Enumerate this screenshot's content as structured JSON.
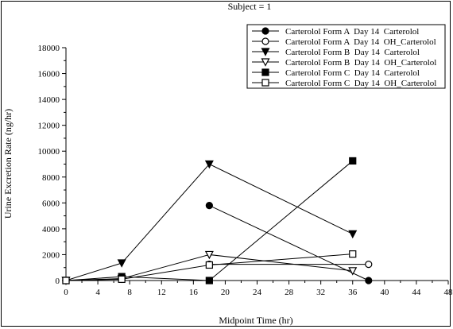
{
  "chart_data": {
    "type": "line",
    "title": "Subject = 1",
    "xlabel": "Midpoint Time (hr)",
    "ylabel": "Urine Excretion Rate (ng/hr)",
    "xlim": [
      0,
      48
    ],
    "ylim": [
      0,
      18000
    ],
    "xticks": [
      0,
      4,
      8,
      12,
      16,
      20,
      24,
      28,
      32,
      36,
      40,
      44,
      48
    ],
    "yticks": [
      0,
      2000,
      4000,
      6000,
      8000,
      10000,
      12000,
      14000,
      16000,
      18000
    ],
    "grid": false,
    "legend_position": "top-right",
    "series": [
      {
        "name": "Carterolol Form A  Day 14  Carterolol",
        "marker": "circle",
        "filled": true,
        "points": [
          [
            18,
            5800
          ],
          [
            38,
            0
          ]
        ]
      },
      {
        "name": "Carterolol Form A  Day 14  OH_Carterolol",
        "marker": "circle",
        "filled": false,
        "points": [
          [
            18,
            1250
          ],
          [
            38,
            1250
          ]
        ]
      },
      {
        "name": "Carterolol Form B  Day 14  Carterolol",
        "marker": "triangle-down",
        "filled": true,
        "points": [
          [
            0,
            0
          ],
          [
            7,
            1350
          ],
          [
            18,
            9000
          ],
          [
            36,
            3600
          ]
        ]
      },
      {
        "name": "Carterolol Form B  Day 14  OH_Carterolol",
        "marker": "triangle-down",
        "filled": false,
        "points": [
          [
            0,
            0
          ],
          [
            7,
            150
          ],
          [
            18,
            2000
          ],
          [
            36,
            750
          ]
        ]
      },
      {
        "name": "Carterolol Form C  Day 14  Carterolol",
        "marker": "square",
        "filled": true,
        "points": [
          [
            0,
            0
          ],
          [
            7,
            300
          ],
          [
            18,
            0
          ],
          [
            36,
            9250
          ]
        ]
      },
      {
        "name": "Carterolol Form C  Day 14  OH_Carterolol",
        "marker": "square",
        "filled": false,
        "points": [
          [
            0,
            0
          ],
          [
            7,
            100
          ],
          [
            18,
            1200
          ],
          [
            36,
            2050
          ]
        ]
      }
    ]
  }
}
